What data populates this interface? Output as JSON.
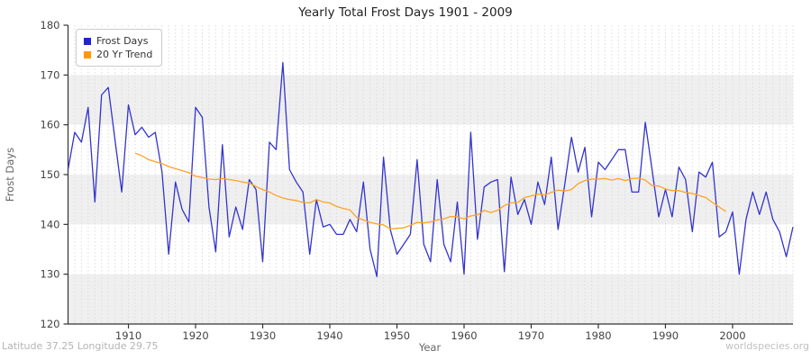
{
  "title": "Yearly Total Frost Days 1901 - 2009",
  "legend": {
    "items": [
      {
        "label": "Frost Days",
        "color": "#2222cc"
      },
      {
        "label": "20 Yr Trend",
        "color": "#ff9900"
      }
    ]
  },
  "axes": {
    "x": {
      "label": "Year",
      "ticks": [
        1910,
        1920,
        1930,
        1940,
        1950,
        1960,
        1970,
        1980,
        1990,
        2000
      ]
    },
    "y": {
      "label": "Frost Days",
      "ticks": [
        120,
        130,
        140,
        150,
        160,
        170,
        180
      ]
    }
  },
  "footer": {
    "left": "Latitude 37.25 Longitude 29.75",
    "right": "worldspecies.org"
  },
  "colors": {
    "frost_line": "#3434cd",
    "trend_line": "#ffa226",
    "band_gray": "#efefef",
    "grid": "#dcdcdc",
    "axis": "#333333",
    "tick_text": "#444444",
    "title_text": "#222222",
    "axis_label_text": "#666666",
    "footer_text": "#b4b4b4",
    "legend_border": "#cccccc"
  },
  "chart_data": {
    "type": "line",
    "title": "Yearly Total Frost Days 1901 - 2009",
    "xlabel": "Year",
    "ylabel": "Frost Days",
    "xlim": [
      1901,
      2009
    ],
    "ylim": [
      120,
      180
    ],
    "x_tick_step": 10,
    "y_tick_step": 10,
    "grid": "vertical dashed line every year; horizontal gray bands at 120-130, 140-150, 160-170",
    "legend_position": "top-left",
    "series": [
      {
        "name": "Frost Days",
        "color": "#3434cd",
        "x_start": 1901,
        "x_step": 1,
        "values": [
          151,
          158.5,
          156.5,
          163.5,
          144.5,
          166,
          167.5,
          157,
          146.5,
          164,
          158,
          159.5,
          157.5,
          158.5,
          150.5,
          134,
          148.5,
          143,
          140.5,
          163.5,
          161.5,
          143.5,
          134.5,
          156,
          137.5,
          143.5,
          139,
          149,
          147,
          132.5,
          156.5,
          155,
          172.5,
          151,
          148.5,
          146.5,
          134,
          145,
          139.5,
          140,
          138,
          138,
          141,
          138.5,
          148.5,
          135,
          129.5,
          153.5,
          139,
          134,
          136,
          138,
          153,
          136,
          132.5,
          149,
          136,
          132.5,
          144.5,
          130,
          158.5,
          137,
          147.5,
          148.5,
          149,
          130.5,
          149.5,
          142,
          145,
          140,
          148.5,
          144,
          153.5,
          139,
          148,
          157.5,
          150.5,
          155.5,
          141.5,
          152.5,
          151,
          153,
          155,
          155,
          146.5,
          146.5,
          160.5,
          151,
          141.5,
          147,
          141.5,
          151.5,
          149,
          138.5,
          150.5,
          149.5,
          152.5,
          137.5,
          138.5,
          142.5,
          130,
          141,
          146.5,
          142,
          146.5,
          141,
          138.5,
          133.5,
          139.5
        ]
      },
      {
        "name": "20 Yr Trend",
        "color": "#ffa226",
        "x_start": 1911,
        "x_step": 1,
        "values": [
          154.3,
          153.8,
          153.0,
          152.6,
          152.2,
          151.6,
          151.2,
          150.8,
          150.4,
          149.7,
          149.4,
          149.1,
          149.0,
          149.2,
          149.0,
          148.8,
          148.5,
          148.3,
          147.6,
          147.0,
          146.5,
          145.8,
          145.3,
          145.0,
          144.8,
          144.4,
          144.3,
          145.0,
          144.5,
          144.3,
          143.6,
          143.2,
          142.9,
          141.4,
          140.9,
          140.4,
          140.1,
          139.9,
          139.1,
          139.2,
          139.3,
          139.8,
          140.4,
          140.3,
          140.5,
          140.9,
          141.1,
          141.6,
          141.5,
          141.1,
          141.7,
          141.9,
          142.8,
          142.4,
          142.8,
          143.8,
          144.3,
          144.4,
          145.4,
          145.7,
          146.1,
          145.9,
          146.4,
          146.9,
          146.7,
          147.0,
          148.2,
          148.8,
          149.1,
          149.1,
          149.2,
          148.9,
          149.2,
          148.8,
          149.2,
          149.3,
          148.9,
          147.8,
          147.7,
          147.1,
          146.8,
          146.8,
          146.4,
          146.2,
          145.8,
          145.4,
          144.4,
          143.5,
          142.6
        ]
      }
    ]
  }
}
